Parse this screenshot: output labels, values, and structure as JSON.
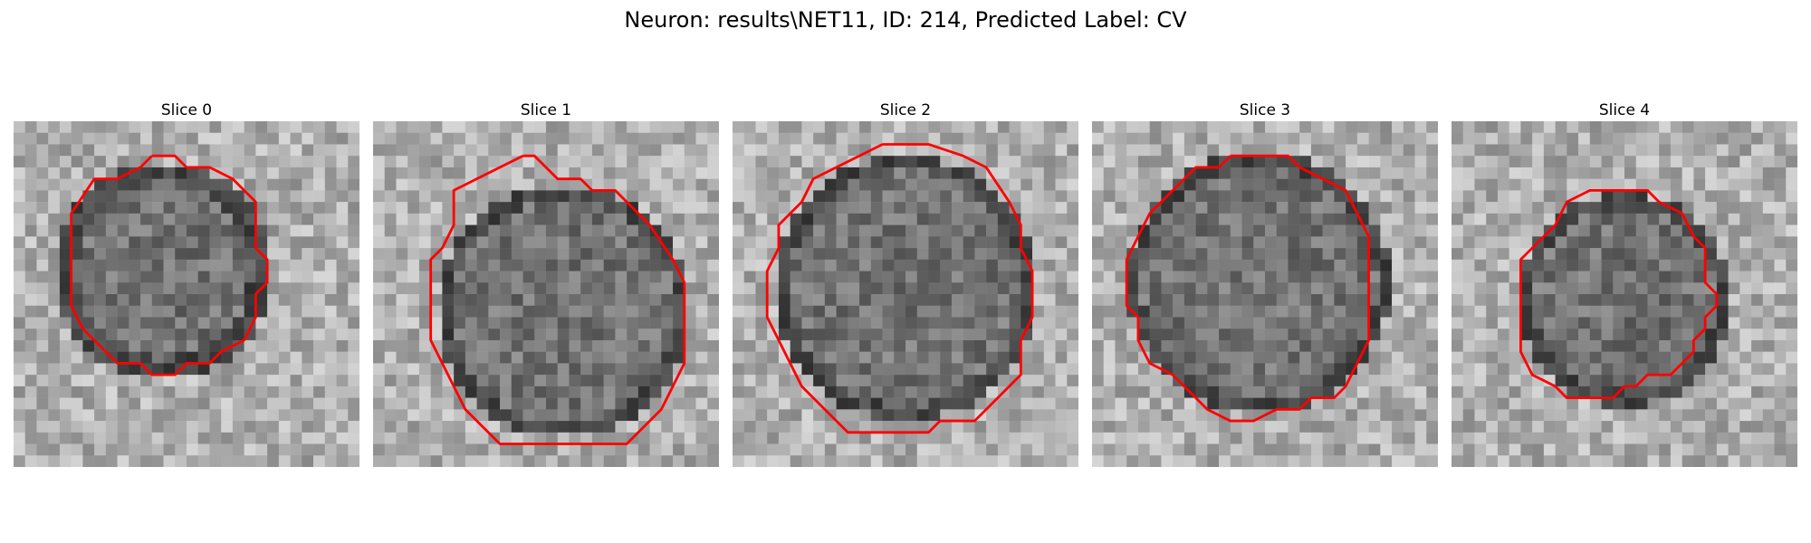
{
  "figure": {
    "title": "Neuron: results\\NET11, ID: 214, Predicted Label: CV"
  },
  "panels": [
    {
      "title": "Slice 0"
    },
    {
      "title": "Slice 1"
    },
    {
      "title": "Slice 2"
    },
    {
      "title": "Slice 3"
    },
    {
      "title": "Slice 4"
    }
  ],
  "colors": {
    "contour": "#ff0000",
    "background": "#ffffff"
  }
}
